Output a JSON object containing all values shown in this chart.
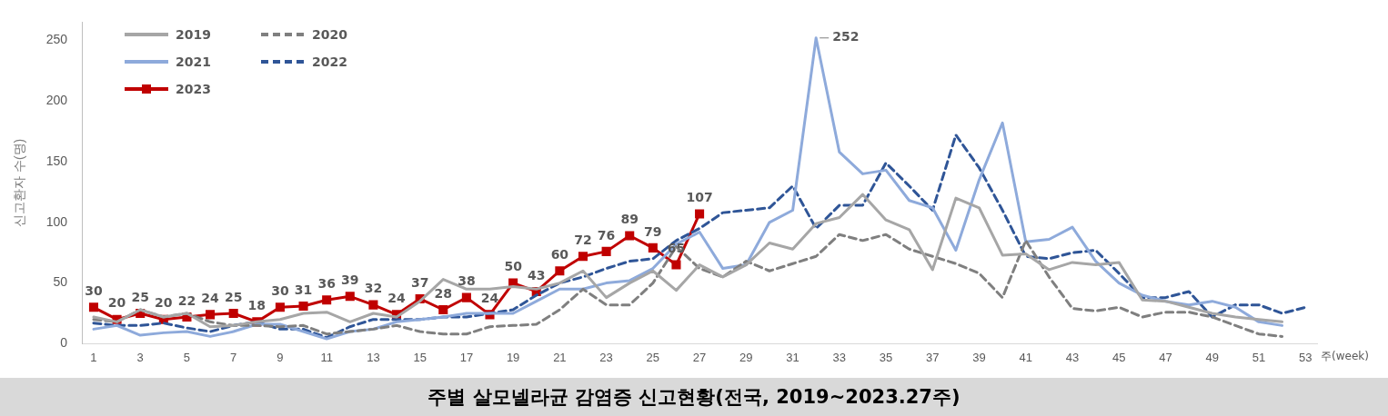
{
  "chart_data": {
    "type": "line",
    "title": "주별 살모넬라균 감염증 신고현황(전국, 2019~2023.27주)",
    "xlabel": "주(week)",
    "ylabel": "신고환자 수(명)",
    "x": [
      1,
      2,
      3,
      4,
      5,
      6,
      7,
      8,
      9,
      10,
      11,
      12,
      13,
      14,
      15,
      16,
      17,
      18,
      19,
      20,
      21,
      22,
      23,
      24,
      25,
      26,
      27,
      28,
      29,
      30,
      31,
      32,
      33,
      34,
      35,
      36,
      37,
      38,
      39,
      40,
      41,
      42,
      43,
      44,
      45,
      46,
      47,
      48,
      49,
      50,
      51,
      52,
      53
    ],
    "xlim": [
      0.5,
      53.5
    ],
    "xticks": [
      1,
      3,
      5,
      7,
      9,
      11,
      13,
      15,
      17,
      19,
      21,
      23,
      25,
      27,
      29,
      31,
      33,
      35,
      37,
      39,
      41,
      43,
      45,
      47,
      49,
      51,
      53
    ],
    "ylim": [
      0,
      265
    ],
    "yticks": [
      0,
      50,
      100,
      150,
      200,
      250
    ],
    "grid": false,
    "legend": "top left",
    "series": [
      {
        "name": "2019",
        "color": "#a6a6a6",
        "line_style": "solid",
        "marker": "none",
        "values": [
          22,
          18,
          28,
          22,
          25,
          14,
          15,
          18,
          20,
          25,
          26,
          18,
          25,
          22,
          35,
          53,
          45,
          45,
          47,
          45,
          50,
          60,
          38,
          50,
          60,
          44,
          65,
          55,
          65,
          83,
          78,
          99,
          104,
          123,
          102,
          94,
          61,
          120,
          112,
          73,
          74,
          61,
          67,
          65,
          67,
          36,
          35,
          30,
          25,
          22,
          20,
          18,
          null
        ]
      },
      {
        "name": "2020",
        "color": "#7f7f7f",
        "line_style": "dashed",
        "marker": "none",
        "values": [
          20,
          18,
          28,
          22,
          25,
          18,
          15,
          15,
          14,
          15,
          8,
          10,
          12,
          15,
          10,
          8,
          8,
          14,
          15,
          16,
          28,
          45,
          32,
          32,
          50,
          80,
          62,
          55,
          68,
          60,
          66,
          72,
          90,
          85,
          90,
          78,
          72,
          66,
          58,
          38,
          85,
          55,
          29,
          27,
          30,
          22,
          26,
          26,
          22,
          15,
          8,
          6,
          null
        ]
      },
      {
        "name": "2021",
        "color": "#8eaadb",
        "line_style": "solid",
        "marker": "none",
        "values": [
          12,
          15,
          7,
          9,
          10,
          6,
          10,
          16,
          16,
          10,
          4,
          10,
          12,
          18,
          20,
          22,
          25,
          25,
          25,
          35,
          45,
          45,
          50,
          52,
          62,
          82,
          92,
          62,
          65,
          100,
          110,
          252,
          158,
          140,
          143,
          118,
          112,
          77,
          135,
          182,
          84,
          86,
          96,
          68,
          50,
          40,
          35,
          32,
          35,
          30,
          18,
          15,
          null
        ]
      },
      {
        "name": "2022",
        "color": "#2f5597",
        "line_style": "dashed",
        "marker": "none",
        "values": [
          17,
          15,
          15,
          17,
          13,
          10,
          15,
          18,
          12,
          12,
          5,
          14,
          20,
          20,
          20,
          22,
          22,
          25,
          28,
          40,
          50,
          55,
          62,
          68,
          70,
          85,
          95,
          108,
          110,
          112,
          130,
          95,
          114,
          114,
          149,
          130,
          110,
          172,
          145,
          110,
          72,
          70,
          75,
          77,
          58,
          38,
          38,
          43,
          22,
          32,
          32,
          25,
          30
        ]
      },
      {
        "name": "2023",
        "color": "#c00000",
        "line_style": "solid",
        "marker": "square",
        "values": [
          30,
          20,
          25,
          20,
          22,
          24,
          25,
          18,
          30,
          31,
          36,
          39,
          32,
          24,
          37,
          28,
          38,
          24,
          50,
          43,
          60,
          72,
          76,
          89,
          79,
          65,
          107,
          null,
          null,
          null,
          null,
          null,
          null,
          null,
          null,
          null,
          null,
          null,
          null,
          null,
          null,
          null,
          null,
          null,
          null,
          null,
          null,
          null,
          null,
          null,
          null,
          null,
          null
        ],
        "value_labels": [
          "30",
          "20",
          "25",
          "20",
          "22",
          "24",
          "25",
          "18",
          "30",
          "31",
          "36",
          "39",
          "32",
          "24",
          "37",
          "28",
          "38",
          "24",
          "50",
          "43",
          "60",
          "72",
          "76",
          "89",
          "79",
          "65",
          "107",
          null,
          null,
          null,
          null,
          null,
          null,
          null,
          null,
          null,
          null,
          null,
          null,
          null,
          null,
          null,
          null,
          null,
          null,
          null,
          null,
          null,
          null,
          null,
          null,
          null,
          null
        ]
      }
    ],
    "annotations": [
      {
        "text": "252",
        "x": 32,
        "y": 252
      }
    ]
  }
}
